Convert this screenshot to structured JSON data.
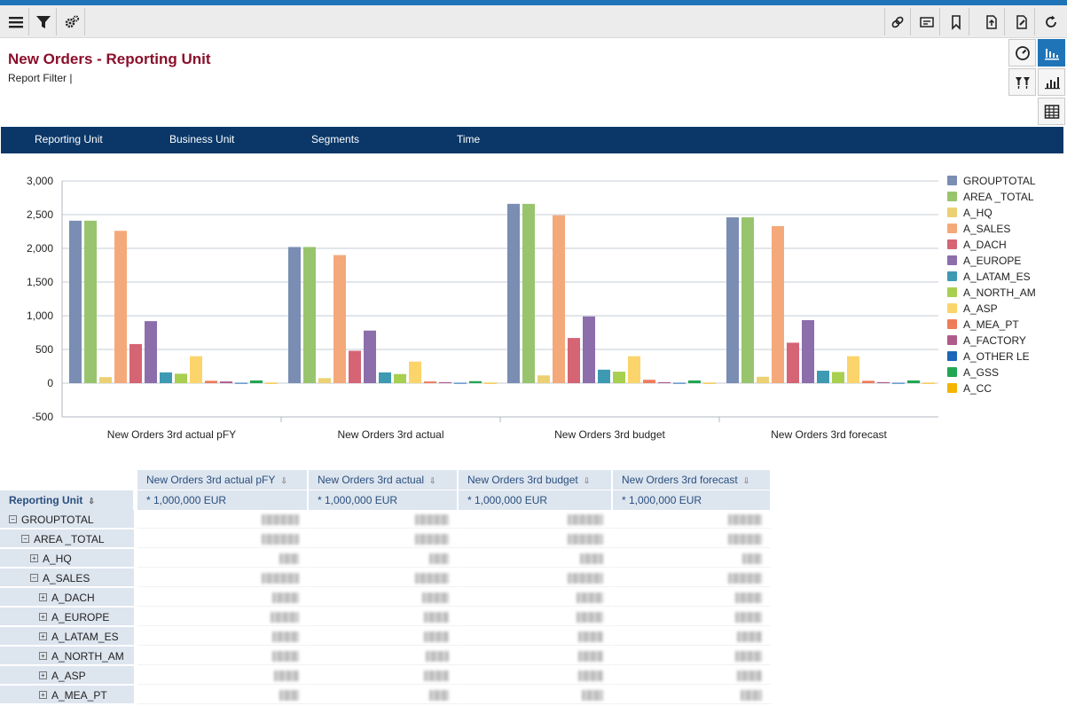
{
  "toolbar": {
    "left_icons": [
      "menu-icon",
      "filter-icon",
      "settings-icon"
    ],
    "right_icons": [
      "link-icon",
      "message-icon",
      "bookmark-icon",
      "export-icon",
      "edit-doc-icon",
      "refresh-icon"
    ]
  },
  "page": {
    "title": "New Orders - Reporting Unit",
    "subtitle": "Report Filter |"
  },
  "side_buttons": [
    "gauge-icon",
    "bar-chart-toggle-icon",
    "filter-sort-icon",
    "column-chart-icon",
    "table-icon"
  ],
  "nav": {
    "items": [
      "Reporting Unit",
      "Business Unit",
      "Segments",
      "Time"
    ]
  },
  "colors": {
    "title": "#8b0f2a",
    "nav_bg": "#0a3768",
    "accent": "#1f74b8",
    "grid_header_bg": "#dde5ef"
  },
  "chart_data": {
    "type": "bar",
    "categories": [
      "New Orders 3rd actual pFY",
      "New Orders 3rd actual",
      "New Orders 3rd budget",
      "New Orders 3rd forecast"
    ],
    "ylim": [
      -500,
      3000
    ],
    "yticks": [
      "-500",
      "0",
      "500",
      "1,000",
      "1,500",
      "2,000",
      "2,500",
      "3,000"
    ],
    "ytick_values": [
      -500,
      0,
      500,
      1000,
      1500,
      2000,
      2500,
      3000
    ],
    "grid": true,
    "legend_position": "right",
    "series": [
      {
        "name": "GROUPTOTAL",
        "color": "#7a8db3",
        "values": [
          2410,
          2020,
          2660,
          2460
        ]
      },
      {
        "name": "AREA _TOTAL",
        "color": "#99c46e",
        "values": [
          2410,
          2020,
          2660,
          2460
        ]
      },
      {
        "name": "A_HQ",
        "color": "#ecd174",
        "values": [
          90,
          75,
          115,
          95
        ]
      },
      {
        "name": "A_SALES",
        "color": "#f4a97b",
        "values": [
          2260,
          1900,
          2490,
          2330
        ]
      },
      {
        "name": "A_DACH",
        "color": "#d56474",
        "values": [
          580,
          480,
          670,
          600
        ]
      },
      {
        "name": "A_EUROPE",
        "color": "#8c6eab",
        "values": [
          920,
          780,
          990,
          935
        ]
      },
      {
        "name": "A_LATAM_ES",
        "color": "#3d9ab2",
        "values": [
          160,
          160,
          200,
          185
        ]
      },
      {
        "name": "A_NORTH_AM",
        "color": "#a8cf4f",
        "values": [
          140,
          135,
          170,
          165
        ]
      },
      {
        "name": "A_ASP",
        "color": "#fbd46b",
        "values": [
          400,
          320,
          400,
          400
        ]
      },
      {
        "name": "A_MEA_PT",
        "color": "#ef7c5b",
        "values": [
          35,
          25,
          50,
          35
        ]
      },
      {
        "name": "A_FACTORY",
        "color": "#b05a8a",
        "values": [
          25,
          15,
          15,
          15
        ]
      },
      {
        "name": "A_OTHER LE",
        "color": "#1a66b8",
        "values": [
          5,
          5,
          5,
          5
        ]
      },
      {
        "name": "A_GSS",
        "color": "#21a652",
        "values": [
          40,
          30,
          40,
          40
        ]
      },
      {
        "name": "A_CC",
        "color": "#f4b400",
        "values": [
          5,
          5,
          5,
          5
        ]
      }
    ]
  },
  "grid": {
    "row_header_label": "Reporting Unit",
    "columns": [
      "New Orders 3rd actual pFY",
      "New Orders 3rd actual",
      "New Orders 3rd budget",
      "New Orders 3rd forecast"
    ],
    "units": [
      "* 1,000,000 EUR",
      "* 1,000,000 EUR",
      "* 1,000,000 EUR",
      "* 1,000,000 EUR"
    ],
    "rows": [
      {
        "label": "GROUPTOTAL",
        "toggle": "−"
      },
      {
        "label": "AREA _TOTAL",
        "toggle": "−"
      },
      {
        "label": "A_HQ",
        "toggle": "+"
      },
      {
        "label": "A_SALES",
        "toggle": "−"
      },
      {
        "label": "A_DACH",
        "toggle": "+"
      },
      {
        "label": "A_EUROPE",
        "toggle": "+"
      },
      {
        "label": "A_LATAM_ES",
        "toggle": "+"
      },
      {
        "label": "A_NORTH_AM",
        "toggle": "+"
      },
      {
        "label": "A_ASP",
        "toggle": "+"
      },
      {
        "label": "A_MEA_PT",
        "toggle": "+"
      }
    ]
  }
}
